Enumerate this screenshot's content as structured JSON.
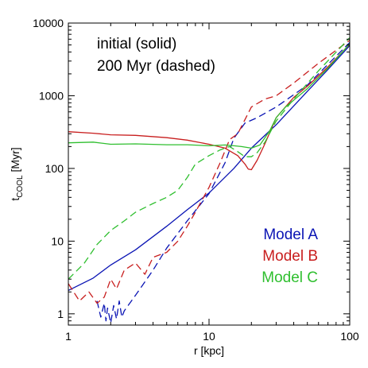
{
  "chart_data": {
    "type": "line",
    "title": "",
    "xlabel": "r [kpc]",
    "ylabel": {
      "main": "t",
      "sub": "COOL",
      "unit": " [Myr]"
    },
    "xscale": "log",
    "yscale": "log",
    "xlim": [
      1,
      100
    ],
    "ylim": [
      0.7,
      10000
    ],
    "x_ticks": [
      {
        "value": 1,
        "label": "1"
      },
      {
        "value": 10,
        "label": "10"
      },
      {
        "value": 100,
        "label": "100"
      }
    ],
    "y_ticks": [
      {
        "value": 1,
        "label": "1"
      },
      {
        "value": 10,
        "label": "10"
      },
      {
        "value": 100,
        "label": "100"
      },
      {
        "value": 1000,
        "label": "1000"
      },
      {
        "value": 10000,
        "label": "10000"
      }
    ],
    "grid": false,
    "annotations": [
      "initial (solid)",
      "200 Myr (dashed)"
    ],
    "legend": {
      "placement": "bottom-right",
      "entries": [
        {
          "name": "Model A",
          "color": "#0a14b4"
        },
        {
          "name": "Model B",
          "color": "#c81e1e"
        },
        {
          "name": "Model C",
          "color": "#2fbf2f"
        }
      ]
    },
    "series": [
      {
        "model": "Model A",
        "style": "solid",
        "color": "#0a14b4",
        "x": [
          1,
          1.5,
          2,
          3,
          5,
          7,
          10,
          15,
          20,
          30,
          50,
          70,
          100
        ],
        "y": [
          2.1,
          3.1,
          4.7,
          7.6,
          16,
          27,
          46,
          100,
          190,
          400,
          1150,
          2300,
          4900
        ]
      },
      {
        "model": "Model A",
        "style": "dashed",
        "color": "#0a14b4",
        "x": [
          1.6,
          1.7,
          1.8,
          1.85,
          1.9,
          2.0,
          2.1,
          2.2,
          2.3,
          2.4,
          2.5,
          3,
          4,
          5,
          7,
          10,
          13,
          15,
          18,
          22,
          30,
          50,
          70,
          100
        ],
        "y": [
          1.5,
          0.9,
          1.4,
          0.8,
          1.2,
          0.75,
          1.3,
          0.85,
          1.5,
          0.9,
          1.1,
          1.8,
          4,
          8,
          19,
          45,
          120,
          260,
          420,
          500,
          700,
          1400,
          2700,
          5400
        ]
      },
      {
        "model": "Model B",
        "style": "solid",
        "color": "#c81e1e",
        "x": [
          1,
          1.5,
          2,
          3,
          5,
          7,
          10,
          13,
          16,
          18,
          19,
          20,
          22,
          25,
          30,
          40,
          50,
          70,
          100
        ],
        "y": [
          320,
          305,
          290,
          285,
          265,
          245,
          215,
          190,
          150,
          115,
          98,
          96,
          130,
          220,
          500,
          950,
          1350,
          2500,
          5100
        ]
      },
      {
        "model": "Model B",
        "style": "dashed",
        "color": "#c81e1e",
        "x": [
          1,
          1.2,
          1.4,
          1.6,
          1.8,
          2,
          2.2,
          2.5,
          3,
          3.5,
          4,
          5,
          6,
          7,
          8,
          10,
          12,
          14,
          16,
          20,
          25,
          30,
          40,
          60,
          100
        ],
        "y": [
          2.6,
          1.5,
          2.0,
          1.4,
          1.7,
          3,
          2.2,
          4,
          5,
          3.5,
          6,
          7,
          10,
          16,
          25,
          55,
          120,
          250,
          300,
          700,
          900,
          1000,
          1500,
          2800,
          5800
        ]
      },
      {
        "model": "Model C",
        "style": "solid",
        "color": "#2fbf2f",
        "x": [
          1,
          1.5,
          2,
          3,
          5,
          7,
          10,
          13,
          15,
          17,
          20,
          23,
          27,
          30,
          35,
          50,
          70,
          100
        ],
        "y": [
          225,
          230,
          215,
          218,
          212,
          212,
          205,
          210,
          205,
          200,
          190,
          210,
          330,
          500,
          700,
          1250,
          2400,
          5200
        ]
      },
      {
        "model": "Model C",
        "style": "dashed",
        "color": "#2fbf2f",
        "x": [
          1,
          1.3,
          1.6,
          2,
          2.5,
          3,
          4,
          5,
          6,
          7,
          8,
          10,
          12,
          14,
          16,
          18,
          20,
          22,
          25,
          30,
          40,
          60,
          100
        ],
        "y": [
          3,
          5,
          9,
          14,
          19,
          25,
          33,
          40,
          50,
          75,
          115,
          150,
          180,
          200,
          170,
          145,
          145,
          165,
          230,
          450,
          900,
          2200,
          6300
        ]
      }
    ]
  }
}
